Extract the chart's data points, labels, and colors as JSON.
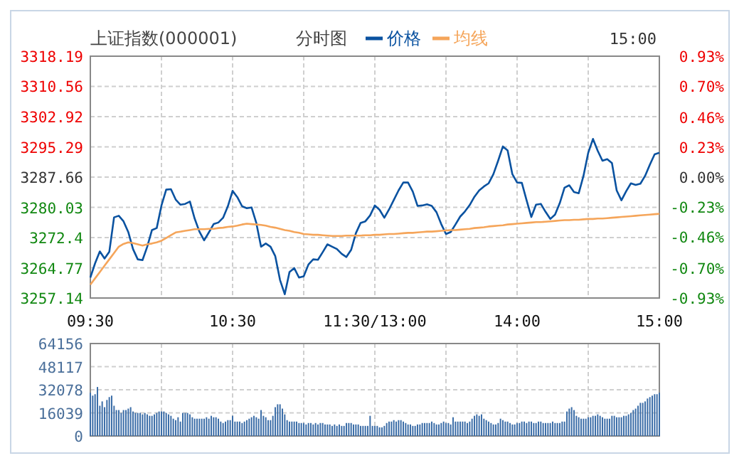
{
  "chart_data": [
    {
      "type": "line",
      "title": "上证指数(000001)",
      "subtitle": "分时图",
      "annotations": [
        "15:00"
      ],
      "categories": [
        "09:30",
        null,
        null,
        null,
        null,
        null,
        null,
        null,
        null,
        null,
        null,
        null,
        null,
        null,
        null,
        null,
        null,
        null,
        null,
        null,
        null,
        null,
        null,
        null,
        null,
        null,
        null,
        null,
        null,
        null,
        "10:30",
        null,
        null,
        null,
        null,
        null,
        null,
        null,
        null,
        null,
        null,
        null,
        null,
        null,
        null,
        null,
        null,
        null,
        null,
        null,
        null,
        null,
        null,
        null,
        null,
        null,
        null,
        null,
        null,
        null,
        "11:30/13:00",
        null,
        null,
        null,
        null,
        null,
        null,
        null,
        null,
        null,
        null,
        null,
        null,
        null,
        null,
        null,
        null,
        null,
        null,
        null,
        null,
        null,
        null,
        null,
        null,
        null,
        null,
        null,
        null,
        null,
        "14:00",
        null,
        null,
        null,
        null,
        null,
        null,
        null,
        null,
        null,
        null,
        null,
        null,
        null,
        null,
        null,
        null,
        null,
        null,
        null,
        null,
        null,
        null,
        null,
        null,
        null,
        null,
        null,
        null,
        null,
        "15:00"
      ],
      "ylim": [
        3257.14,
        3318.19
      ],
      "yticks": [
        3257.14,
        3264.77,
        3272.4,
        3280.03,
        3287.66,
        3295.29,
        3302.92,
        3310.56,
        3318.19
      ],
      "y2lim": [
        -0.93,
        0.93
      ],
      "y2ticks": [
        {
          "value": -0.93,
          "label": "-0.93%"
        },
        {
          "value": -0.7,
          "label": "-0.70%"
        },
        {
          "value": -0.46,
          "label": "-0.46%"
        },
        {
          "value": -0.23,
          "label": "-0.23%"
        },
        {
          "value": 0,
          "label": "0.00%"
        },
        {
          "value": 0.23,
          "label": "0.23%"
        },
        {
          "value": 0.46,
          "label": "0.46%"
        },
        {
          "value": 0.7,
          "label": "0.70%"
        },
        {
          "value": 0.93,
          "label": "0.93%"
        }
      ],
      "grid": true,
      "legend": "top",
      "line_style": "solid",
      "marker": "none",
      "series": [
        {
          "name": "价格",
          "color": "#0a52a0",
          "values": [
            3262.3,
            3265.9,
            3268.9,
            3267.1,
            3268.8,
            3277.5,
            3277.9,
            3276.5,
            3273.8,
            3269.5,
            3266.9,
            3266.7,
            3270.1,
            3274.3,
            3274.8,
            3280.5,
            3284.5,
            3284.6,
            3282.0,
            3280.7,
            3280.9,
            3281.5,
            3277.2,
            3273.9,
            3271.7,
            3273.7,
            3275.8,
            3276.2,
            3277.4,
            3280.3,
            3284.2,
            3282.6,
            3280.3,
            3279.8,
            3280.0,
            3276.1,
            3270.1,
            3270.9,
            3270.1,
            3267.7,
            3261.7,
            3258.1,
            3263.7,
            3264.7,
            3262.3,
            3262.6,
            3265.6,
            3266.9,
            3266.8,
            3268.7,
            3270.7,
            3270.1,
            3269.5,
            3268.3,
            3267.5,
            3269.3,
            3273.5,
            3276.1,
            3276.5,
            3278.0,
            3280.5,
            3279.4,
            3277.4,
            3279.5,
            3281.9,
            3284.3,
            3286.3,
            3286.3,
            3284.0,
            3280.4,
            3280.5,
            3280.8,
            3280.4,
            3278.8,
            3275.8,
            3273.3,
            3273.8,
            3275.7,
            3277.7,
            3279.0,
            3280.6,
            3282.7,
            3284.3,
            3285.3,
            3286.1,
            3288.4,
            3291.8,
            3295.4,
            3294.4,
            3288.4,
            3286.3,
            3286.2,
            3281.8,
            3277.6,
            3280.7,
            3280.9,
            3278.9,
            3277.1,
            3278.2,
            3281.1,
            3285.0,
            3285.6,
            3283.9,
            3283.6,
            3288.0,
            3293.8,
            3297.3,
            3294.3,
            3291.8,
            3292.2,
            3291.2,
            3284.3,
            3281.8,
            3284.1,
            3286.1,
            3285.7,
            3286.0,
            3288.0,
            3290.8,
            3293.4,
            3293.8
          ]
        },
        {
          "name": "均线",
          "color": "#f5a55a",
          "values": [
            3260.5,
            3262.1,
            3263.7,
            3265.3,
            3266.9,
            3268.5,
            3270.1,
            3270.8,
            3271.2,
            3271.0,
            3270.7,
            3270.4,
            3270.7,
            3270.9,
            3271.2,
            3271.6,
            3272.3,
            3273.0,
            3273.7,
            3273.9,
            3274.1,
            3274.3,
            3274.5,
            3274.5,
            3274.5,
            3274.6,
            3274.6,
            3274.8,
            3274.9,
            3275.1,
            3275.2,
            3275.4,
            3275.7,
            3275.9,
            3275.8,
            3275.7,
            3275.6,
            3275.4,
            3275.1,
            3274.9,
            3274.6,
            3274.3,
            3274.1,
            3273.8,
            3273.6,
            3273.3,
            3273.2,
            3273.1,
            3273.1,
            3273.0,
            3272.9,
            3272.8,
            3272.8,
            3272.8,
            3272.9,
            3272.9,
            3272.9,
            3272.9,
            3273.0,
            3273.0,
            3273.1,
            3273.1,
            3273.2,
            3273.3,
            3273.3,
            3273.4,
            3273.5,
            3273.6,
            3273.6,
            3273.7,
            3273.8,
            3273.9,
            3273.9,
            3274.0,
            3274.1,
            3274.2,
            3274.3,
            3274.3,
            3274.4,
            3274.5,
            3274.6,
            3274.8,
            3274.9,
            3275.0,
            3275.2,
            3275.3,
            3275.4,
            3275.5,
            3275.7,
            3275.8,
            3275.9,
            3276.0,
            3276.1,
            3276.2,
            3276.3,
            3276.3,
            3276.4,
            3276.5,
            3276.6,
            3276.7,
            3276.8,
            3276.8,
            3276.9,
            3276.9,
            3277.0,
            3277.1,
            3277.1,
            3277.2,
            3277.2,
            3277.3,
            3277.4,
            3277.5,
            3277.6,
            3277.7,
            3277.8,
            3277.9,
            3278.0,
            3278.1,
            3278.2,
            3278.3,
            3278.4
          ]
        }
      ]
    },
    {
      "type": "bar",
      "tick_labels": "y",
      "grid": true,
      "color": "#3c6ea8",
      "ylim": [
        0,
        64156
      ],
      "yticks": [
        0,
        16039,
        32078,
        48117,
        64156
      ],
      "categories": [
        null,
        null,
        null,
        null,
        null,
        null,
        null,
        null,
        null,
        null,
        null,
        null,
        null,
        null,
        null,
        null,
        null,
        null,
        null,
        null,
        null,
        null,
        null,
        null,
        null,
        null,
        null,
        null,
        null,
        null,
        null,
        null,
        null,
        null,
        null,
        null,
        null,
        null,
        null,
        null,
        null,
        null,
        null,
        null,
        null,
        null,
        null,
        null,
        null,
        null,
        null,
        null,
        null,
        null,
        null,
        null,
        null,
        null,
        null,
        null,
        null,
        null,
        null,
        null,
        null,
        null,
        null,
        null,
        null,
        null,
        null,
        null,
        null,
        null,
        null,
        null,
        null,
        null,
        null,
        null,
        null,
        null,
        null,
        null,
        null,
        null,
        null,
        null,
        null,
        null,
        null,
        null,
        null,
        null,
        null,
        null,
        null,
        null,
        null,
        null,
        null,
        null,
        null,
        null,
        null,
        null,
        null,
        null,
        null,
        null,
        null,
        null,
        null,
        null,
        null,
        null,
        null,
        null,
        null,
        null,
        null,
        null,
        null,
        null,
        null,
        null,
        null,
        null,
        null,
        null,
        null,
        null,
        null,
        null,
        null,
        null,
        null,
        null,
        null,
        null,
        null,
        null,
        null,
        null,
        null,
        null,
        null,
        null,
        null,
        null,
        null,
        null,
        null,
        null,
        null,
        null,
        null,
        null,
        null,
        null,
        null,
        null,
        null,
        null,
        null,
        null,
        null,
        null,
        null,
        null,
        null,
        null,
        null,
        null,
        null,
        null,
        null,
        null,
        null,
        null,
        null,
        null,
        null,
        null,
        null,
        null,
        null,
        null,
        null,
        null,
        null,
        null,
        null,
        null,
        null,
        null,
        null,
        null,
        null,
        null,
        null,
        null,
        null,
        null,
        null,
        null,
        null,
        null,
        null,
        null,
        null,
        null,
        null,
        null,
        null,
        null,
        null,
        null,
        null,
        null,
        null,
        null,
        null,
        null,
        null,
        null,
        null,
        null,
        null,
        null,
        null,
        null,
        null,
        null,
        null,
        null,
        null,
        null,
        null,
        null,
        null
      ],
      "values": [
        30000,
        28000,
        29000,
        34000,
        21000,
        24000,
        20000,
        25000,
        27000,
        28000,
        21000,
        18000,
        18000,
        16000,
        18000,
        18000,
        19000,
        20000,
        17000,
        16000,
        16000,
        16000,
        15000,
        16000,
        15000,
        14000,
        14000,
        15000,
        16000,
        17000,
        17000,
        17000,
        16000,
        15000,
        14000,
        12000,
        11000,
        13000,
        10000,
        16000,
        16000,
        16000,
        15000,
        13000,
        12000,
        12000,
        12000,
        12000,
        12000,
        13000,
        12000,
        14000,
        13000,
        13000,
        12000,
        10000,
        9000,
        10000,
        11000,
        11000,
        14000,
        10000,
        10000,
        10000,
        9000,
        10000,
        11000,
        12000,
        13000,
        14000,
        13000,
        12000,
        18000,
        14000,
        13000,
        11000,
        11000,
        14000,
        20000,
        22000,
        22000,
        19000,
        15000,
        11000,
        10000,
        10000,
        10000,
        10000,
        9000,
        9000,
        9000,
        8000,
        9000,
        9000,
        8000,
        9000,
        8000,
        9000,
        9000,
        8000,
        8000,
        8000,
        7000,
        8000,
        7000,
        8000,
        7000,
        7000,
        9000,
        9000,
        9000,
        8000,
        8000,
        8000,
        7000,
        7000,
        7000,
        7000,
        14000,
        7000,
        7000,
        7000,
        6000,
        6000,
        7000,
        9000,
        10000,
        10000,
        11000,
        10000,
        11000,
        11000,
        10000,
        9000,
        8000,
        8000,
        7000,
        7000,
        8000,
        8000,
        9000,
        9000,
        9000,
        9000,
        10000,
        9000,
        8000,
        8000,
        9000,
        10000,
        9000,
        9000,
        8000,
        13000,
        10000,
        10000,
        10000,
        10000,
        10000,
        9000,
        10000,
        12000,
        14000,
        15000,
        14000,
        15000,
        12000,
        11000,
        10000,
        9000,
        8000,
        8000,
        9000,
        12000,
        11000,
        10000,
        10000,
        9000,
        8000,
        8000,
        9000,
        9000,
        10000,
        10000,
        9000,
        10000,
        10000,
        9000,
        9000,
        10000,
        10000,
        9000,
        9000,
        9000,
        9000,
        10000,
        9000,
        9000,
        9000,
        10000,
        10000,
        17000,
        19000,
        20000,
        18000,
        14000,
        13000,
        12000,
        12000,
        12000,
        13000,
        13000,
        14000,
        14000,
        15000,
        14000,
        13000,
        12000,
        12000,
        12000,
        14000,
        14000,
        13000,
        13000,
        13000,
        14000,
        14000,
        15000,
        16000,
        18000,
        19000,
        21000,
        23000,
        23000,
        24000,
        26000,
        27000,
        28000,
        29000,
        29000,
        30000
      ]
    }
  ]
}
